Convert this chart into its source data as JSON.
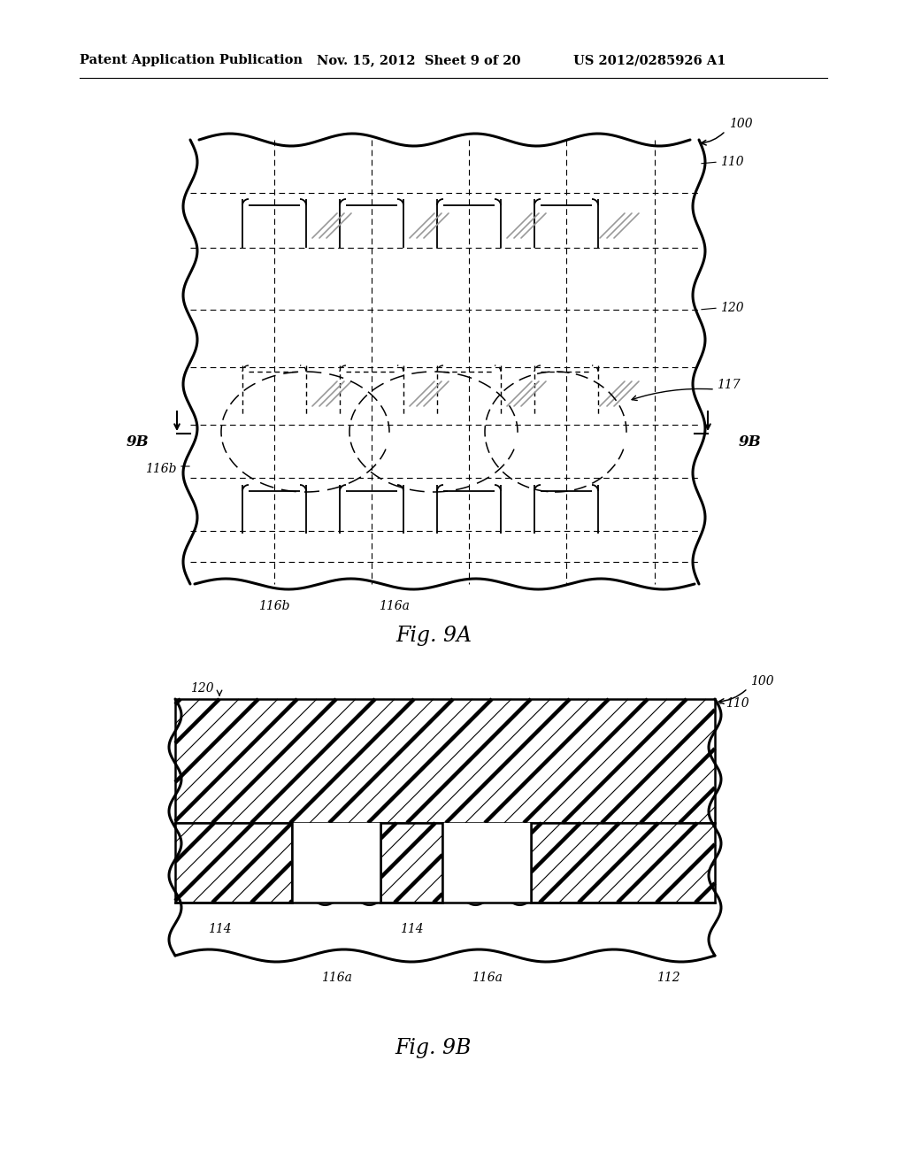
{
  "bg_color": "#ffffff",
  "header_text": "Patent Application Publication",
  "header_date": "Nov. 15, 2012  Sheet 9 of 20",
  "header_patent": "US 2012/0285926 A1",
  "fig9a_label": "Fig. 9A",
  "fig9b_label": "Fig. 9B"
}
